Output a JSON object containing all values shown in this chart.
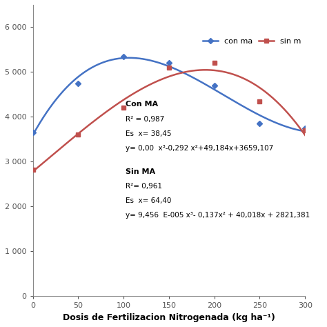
{
  "x": [
    0,
    50,
    100,
    150,
    200,
    250,
    300
  ],
  "con_ma_pts": [
    3659,
    4750,
    5350,
    5200,
    4700,
    3850,
    3750
  ],
  "sin_ma_pts": [
    2821,
    3600,
    4200,
    5100,
    5200,
    4350,
    3700
  ],
  "con_ma_color": "#4472C4",
  "sin_ma_color": "#C0504D",
  "xlabel": "Dosis de Fertilizacion Nitrogenada (kg ha⁻¹)",
  "ylim": [
    0,
    6500
  ],
  "xlim": [
    0,
    300
  ],
  "ytick_vals": [
    0,
    1000,
    2000,
    3000,
    4000,
    5000,
    6000
  ],
  "ytick_labels": [
    "0",
    "1 000",
    "2 000",
    "3 000",
    "4 000",
    "5 000",
    "6 000"
  ],
  "xticks": [
    0,
    50,
    100,
    150,
    200,
    250,
    300
  ],
  "legend_con": "con ma",
  "legend_sin": "sin m",
  "bg_color": "#ffffff",
  "annot_con_title": "Con MA",
  "annot_con_r2": "R² = 0,987",
  "annot_con_es": "Es  x= 38,45",
  "annot_con_eq": "y= 0,00  x³-0,292 x²+49,184x+3659,107",
  "annot_sin_title": "Sin MA",
  "annot_sin_r2": "R²= 0,961",
  "annot_sin_es": "Es  x= 64,40",
  "annot_sin_eq": "y= 9,456  E-005 x³- 0,137x² + 40,018x + 2821,381"
}
